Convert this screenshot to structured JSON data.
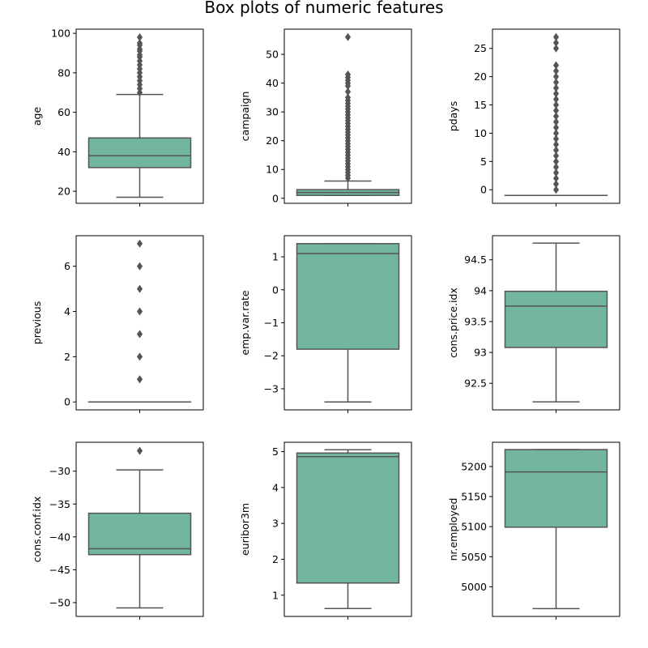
{
  "figure": {
    "title": "Box plots of numeric features"
  },
  "style": {
    "box_fill": "#72b6a1",
    "line_color": "#555555",
    "frame_color": "#000000"
  },
  "chart_data": [
    {
      "type": "box",
      "ylabel": "age",
      "ylim": [
        13.9,
        102.1
      ],
      "ticks": [
        20,
        40,
        60,
        80,
        100
      ],
      "stats": {
        "min": 17,
        "q1": 32,
        "median": 38,
        "q3": 47,
        "max": 69
      },
      "outliers": [
        70,
        72,
        74,
        76,
        78,
        80,
        82,
        84,
        86,
        88,
        89,
        91,
        92,
        94,
        95,
        98
      ]
    },
    {
      "type": "box",
      "ylabel": "campaign",
      "ylim": [
        -1.75,
        58.75
      ],
      "ticks": [
        0,
        10,
        20,
        30,
        40,
        50
      ],
      "stats": {
        "min": 1,
        "q1": 1,
        "median": 2,
        "q3": 3,
        "max": 6
      },
      "outliers": [
        7,
        8,
        9,
        10,
        11,
        12,
        13,
        14,
        15,
        16,
        17,
        18,
        19,
        20,
        21,
        22,
        23,
        24,
        25,
        26,
        27,
        28,
        29,
        30,
        31,
        32,
        33,
        34,
        35,
        37,
        39,
        40,
        41,
        42,
        43,
        56
      ]
    },
    {
      "type": "box",
      "ylabel": "pdays",
      "ylim": [
        -2.4,
        28.4
      ],
      "ticks": [
        0,
        5,
        10,
        15,
        20,
        25
      ],
      "stats": {
        "min": -1,
        "q1": -1,
        "median": -1,
        "q3": -1,
        "max": -1
      },
      "outliers": [
        0,
        1,
        2,
        3,
        4,
        5,
        6,
        7,
        8,
        9,
        10,
        11,
        12,
        13,
        14,
        15,
        16,
        17,
        18,
        19,
        20,
        21,
        22,
        25,
        26,
        27
      ]
    },
    {
      "type": "box",
      "ylabel": "previous",
      "ylim": [
        -0.35,
        7.35
      ],
      "ticks": [
        0,
        2,
        4,
        6
      ],
      "stats": {
        "min": 0,
        "q1": 0,
        "median": 0,
        "q3": 0,
        "max": 0
      },
      "outliers": [
        1,
        2,
        3,
        4,
        5,
        6,
        7
      ]
    },
    {
      "type": "box",
      "ylabel": "emp.var.rate",
      "ylim": [
        -3.64,
        1.64
      ],
      "ticks": [
        -3,
        -2,
        -1,
        0,
        1
      ],
      "stats": {
        "min": -3.4,
        "q1": -1.8,
        "median": 1.1,
        "q3": 1.4,
        "max": 1.4
      },
      "outliers": []
    },
    {
      "type": "box",
      "ylabel": "cons.price.idx",
      "ylim": [
        92.07,
        94.89
      ],
      "ticks": [
        92.5,
        93.0,
        93.5,
        94.0,
        94.5
      ],
      "stats": {
        "min": 92.2,
        "q1": 93.08,
        "median": 93.75,
        "q3": 93.99,
        "max": 94.77
      },
      "outliers": []
    },
    {
      "type": "box",
      "ylabel": "cons.conf.idx",
      "ylim": [
        -52.1,
        -25.6
      ],
      "ticks": [
        -50,
        -45,
        -40,
        -35,
        -30
      ],
      "stats": {
        "min": -50.8,
        "q1": -42.7,
        "median": -41.8,
        "q3": -36.4,
        "max": -29.8
      },
      "outliers": [
        -26.9
      ]
    },
    {
      "type": "box",
      "ylabel": "euribor3m",
      "ylim": [
        0.41,
        5.26
      ],
      "ticks": [
        1,
        2,
        3,
        4,
        5
      ],
      "stats": {
        "min": 0.63,
        "q1": 1.34,
        "median": 4.86,
        "q3": 4.96,
        "max": 5.05
      },
      "outliers": []
    },
    {
      "type": "box",
      "ylabel": "nr.employed",
      "ylim": [
        4950.7,
        5240.3
      ],
      "ticks": [
        5000,
        5050,
        5100,
        5150,
        5200
      ],
      "stats": {
        "min": 4963.6,
        "q1": 5099.1,
        "median": 5191.0,
        "q3": 5228.1,
        "max": 5228.1
      },
      "outliers": []
    }
  ]
}
